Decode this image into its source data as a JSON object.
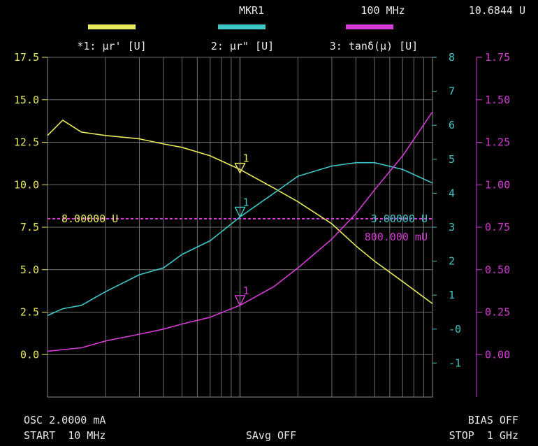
{
  "header": {
    "marker_label": "MKR1",
    "marker_freq": "100 MHz",
    "marker_value": "10.6844 U"
  },
  "footer": {
    "osc": "OSC 2.0000 mA",
    "bias": "BIAS OFF",
    "start": "START  10 MHz",
    "savg": "SAvg OFF",
    "stop": "STOP  1 GHz"
  },
  "chart_data": {
    "type": "line",
    "x_scale": "log",
    "x_range_hz": [
      10000000,
      1000000000
    ],
    "grid": true,
    "series": [
      {
        "name": "*1: μr' [U]",
        "color": "#e8e85a",
        "axis": "left",
        "x_hz": [
          10000000,
          12000000,
          15000000,
          20000000,
          30000000,
          40000000,
          50000000,
          70000000,
          100000000,
          150000000,
          200000000,
          300000000,
          400000000,
          500000000,
          700000000,
          1000000000
        ],
        "y": [
          12.9,
          13.8,
          13.1,
          12.9,
          12.7,
          12.4,
          12.2,
          11.7,
          10.9,
          9.8,
          9.0,
          7.7,
          6.4,
          5.5,
          4.3,
          3.0
        ]
      },
      {
        "name": "2: μr\" [U]",
        "color": "#3fc6c6",
        "axis": "middle",
        "x_hz": [
          10000000,
          12000000,
          15000000,
          20000000,
          30000000,
          40000000,
          50000000,
          70000000,
          100000000,
          150000000,
          200000000,
          300000000,
          400000000,
          500000000,
          700000000,
          1000000000
        ],
        "y": [
          0.4,
          0.6,
          0.7,
          1.1,
          1.6,
          1.8,
          2.2,
          2.6,
          3.3,
          4.0,
          4.5,
          4.8,
          4.9,
          4.9,
          4.7,
          4.3
        ]
      },
      {
        "name": "3: tanδ(μ) [U]",
        "color": "#d43ad4",
        "axis": "right",
        "x_hz": [
          10000000,
          15000000,
          20000000,
          30000000,
          40000000,
          50000000,
          70000000,
          100000000,
          150000000,
          200000000,
          300000000,
          400000000,
          500000000,
          700000000,
          1000000000
        ],
        "y": [
          0.02,
          0.04,
          0.08,
          0.12,
          0.15,
          0.18,
          0.22,
          0.29,
          0.4,
          0.51,
          0.68,
          0.83,
          0.97,
          1.17,
          1.43
        ]
      }
    ],
    "axes": {
      "left": {
        "range": [
          -2.5,
          17.5
        ],
        "ticks": [
          17.5,
          15.0,
          12.5,
          10.0,
          7.5,
          5.0,
          2.5,
          0.0
        ],
        "tick_labels": [
          "17.5",
          "15.0",
          "12.5",
          "10.0",
          "7.5",
          "5.0",
          "2.5",
          "0.0"
        ],
        "color": "#e8e85a"
      },
      "middle": {
        "range": [
          -2,
          8
        ],
        "ticks": [
          8,
          7,
          6,
          5,
          4,
          3,
          2,
          1,
          0,
          -1
        ],
        "tick_labels": [
          "8",
          "7",
          "6",
          "5",
          "4",
          "3",
          "2",
          "1",
          "-0",
          "-1"
        ],
        "color": "#3fc6c6"
      },
      "right": {
        "range": [
          -0.25,
          1.75
        ],
        "ticks": [
          1.75,
          1.5,
          1.25,
          1.0,
          0.75,
          0.5,
          0.25,
          0.0
        ],
        "tick_labels": [
          "1.75",
          "1.50",
          "1.25",
          "1.00",
          "0.75",
          "0.50",
          "0.25",
          "0.00"
        ],
        "color": "#d43ad4"
      }
    },
    "reference_line": {
      "value": 8.0,
      "axis": "left",
      "color": "#d43ad4"
    },
    "annotations": [
      {
        "text": "8.00000 U",
        "color": "#e8e85a"
      },
      {
        "text": "3.00000 U",
        "color": "#3fc6c6"
      },
      {
        "text": "800.000 mU",
        "color": "#d43ad4"
      }
    ],
    "marker": {
      "label": "1",
      "x_hz": 100000000,
      "values": [
        10.6844,
        3.3,
        0.29
      ]
    }
  }
}
